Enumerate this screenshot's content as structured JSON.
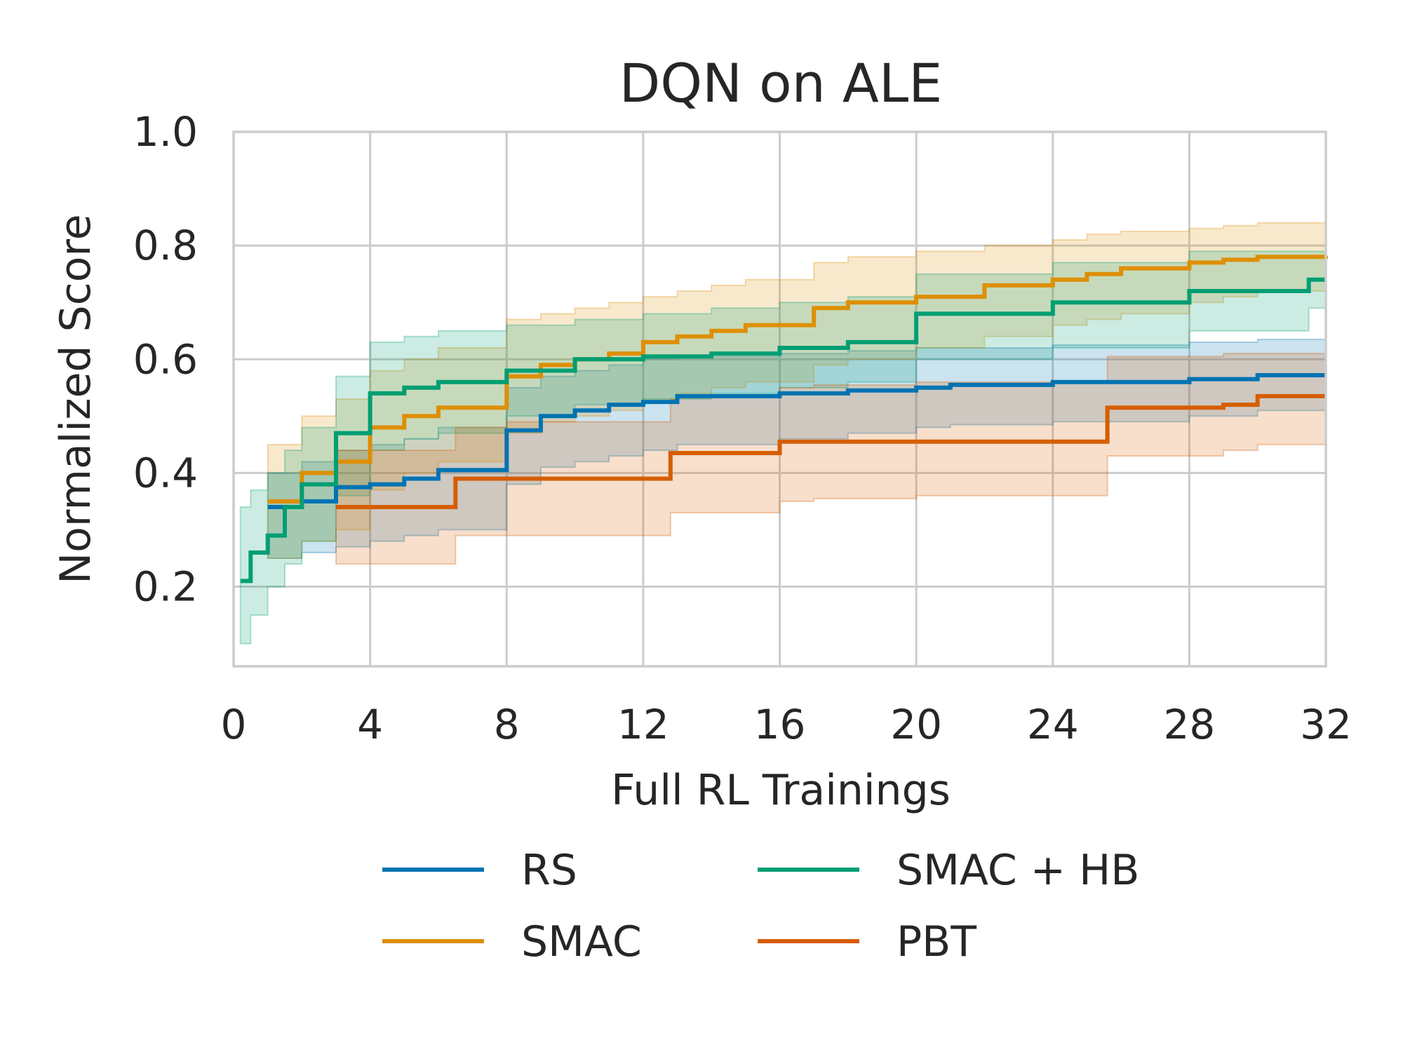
{
  "chart_data": {
    "type": "line",
    "title": "DQN on ALE",
    "xlabel": "Full RL Trainings",
    "ylabel": "Normalized Score",
    "xlim": [
      0,
      32
    ],
    "ylim": [
      0.06,
      1.0
    ],
    "xticks": [
      0,
      4,
      8,
      12,
      16,
      20,
      24,
      28,
      32
    ],
    "xtick_labels": [
      "0",
      "4",
      "8",
      "12",
      "16",
      "20",
      "24",
      "28",
      "32"
    ],
    "yticks": [
      0.2,
      0.4,
      0.6,
      0.8,
      1.0
    ],
    "ytick_labels": [
      "0.2",
      "0.4",
      "0.6",
      "0.8",
      "1.0"
    ],
    "grid": true,
    "legend_position": "bottom-center",
    "series": [
      {
        "name": "RS",
        "color": "#0173b2",
        "x": [
          1.0,
          2.0,
          3.0,
          4.0,
          5.0,
          6.0,
          8.0,
          9.0,
          10.0,
          11.0,
          12.0,
          13.0,
          16.0,
          18.0,
          20.0,
          21.0,
          24.0,
          28.0,
          30.0,
          32.0
        ],
        "y": [
          0.34,
          0.35,
          0.375,
          0.38,
          0.39,
          0.405,
          0.475,
          0.5,
          0.51,
          0.52,
          0.525,
          0.535,
          0.54,
          0.545,
          0.55,
          0.555,
          0.56,
          0.565,
          0.572,
          0.572
        ],
        "lower": [
          0.25,
          0.26,
          0.27,
          0.28,
          0.29,
          0.3,
          0.38,
          0.41,
          0.42,
          0.43,
          0.44,
          0.45,
          0.46,
          0.47,
          0.48,
          0.485,
          0.49,
          0.5,
          0.51,
          0.51
        ],
        "upper": [
          0.4,
          0.42,
          0.44,
          0.45,
          0.46,
          0.48,
          0.55,
          0.57,
          0.58,
          0.59,
          0.6,
          0.605,
          0.61,
          0.615,
          0.62,
          0.62,
          0.625,
          0.63,
          0.635,
          0.635
        ]
      },
      {
        "name": "SMAC",
        "color": "#de8f05",
        "x": [
          1.0,
          2.0,
          3.0,
          4.0,
          5.0,
          6.0,
          8.0,
          9.0,
          10.0,
          11.0,
          12.0,
          13.0,
          14.0,
          15.0,
          17.0,
          18.0,
          20.0,
          22.0,
          24.0,
          25.0,
          26.0,
          28.0,
          29.0,
          30.0,
          32.0
        ],
        "y": [
          0.35,
          0.4,
          0.42,
          0.48,
          0.5,
          0.515,
          0.57,
          0.59,
          0.6,
          0.61,
          0.63,
          0.64,
          0.65,
          0.66,
          0.69,
          0.7,
          0.71,
          0.73,
          0.74,
          0.75,
          0.76,
          0.77,
          0.775,
          0.78,
          0.782
        ],
        "lower": [
          0.25,
          0.28,
          0.3,
          0.37,
          0.4,
          0.42,
          0.47,
          0.49,
          0.5,
          0.51,
          0.53,
          0.54,
          0.55,
          0.56,
          0.59,
          0.6,
          0.62,
          0.64,
          0.66,
          0.67,
          0.68,
          0.7,
          0.71,
          0.72,
          0.72
        ],
        "upper": [
          0.45,
          0.5,
          0.53,
          0.58,
          0.6,
          0.62,
          0.67,
          0.68,
          0.69,
          0.7,
          0.71,
          0.72,
          0.73,
          0.74,
          0.77,
          0.78,
          0.79,
          0.8,
          0.81,
          0.82,
          0.825,
          0.83,
          0.835,
          0.84,
          0.84
        ]
      },
      {
        "name": "SMAC + HB",
        "color": "#029e73",
        "x": [
          0.2,
          0.5,
          1.0,
          1.5,
          2.0,
          3.0,
          4.0,
          5.0,
          6.0,
          8.0,
          10.0,
          12.0,
          14.0,
          16.0,
          18.0,
          20.0,
          24.0,
          28.0,
          31.5,
          32.0
        ],
        "y": [
          0.21,
          0.26,
          0.29,
          0.34,
          0.38,
          0.47,
          0.54,
          0.55,
          0.56,
          0.58,
          0.6,
          0.605,
          0.61,
          0.62,
          0.63,
          0.68,
          0.7,
          0.72,
          0.74,
          0.74
        ],
        "lower": [
          0.1,
          0.15,
          0.2,
          0.24,
          0.28,
          0.36,
          0.44,
          0.46,
          0.47,
          0.5,
          0.52,
          0.53,
          0.54,
          0.55,
          0.56,
          0.6,
          0.62,
          0.65,
          0.69,
          0.69
        ],
        "upper": [
          0.34,
          0.37,
          0.4,
          0.44,
          0.48,
          0.57,
          0.63,
          0.64,
          0.65,
          0.66,
          0.67,
          0.68,
          0.69,
          0.7,
          0.71,
          0.75,
          0.77,
          0.79,
          0.79,
          0.79
        ]
      },
      {
        "name": "PBT",
        "color": "#d55e00",
        "x": [
          3.0,
          4.0,
          6.5,
          8.0,
          12.8,
          13.0,
          16.0,
          17.0,
          20.0,
          25.6,
          27.0,
          29.0,
          30.0,
          32.0
        ],
        "y": [
          0.34,
          0.34,
          0.39,
          0.39,
          0.435,
          0.435,
          0.455,
          0.455,
          0.455,
          0.515,
          0.515,
          0.52,
          0.535,
          0.535
        ],
        "lower": [
          0.24,
          0.24,
          0.29,
          0.29,
          0.33,
          0.33,
          0.35,
          0.355,
          0.36,
          0.43,
          0.43,
          0.44,
          0.45,
          0.45
        ],
        "upper": [
          0.44,
          0.44,
          0.48,
          0.49,
          0.53,
          0.535,
          0.55,
          0.555,
          0.56,
          0.605,
          0.605,
          0.61,
          0.61,
          0.61
        ]
      }
    ]
  }
}
